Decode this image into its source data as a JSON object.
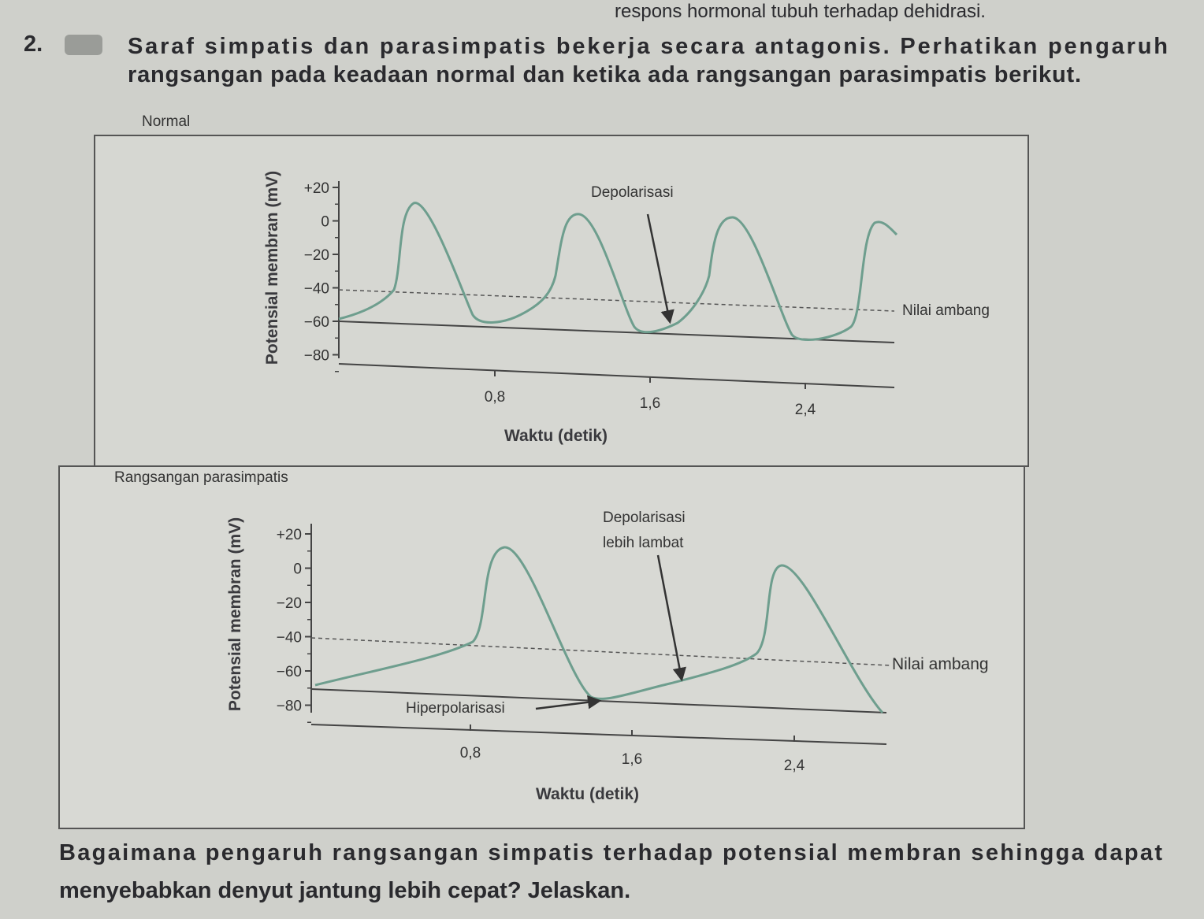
{
  "header": {
    "text": "respons hormonal tubuh terhadap dehidrasi."
  },
  "question": {
    "number": "2.",
    "lines": [
      "Saraf simpatis dan parasimpatis bekerja secara antagonis. Perhatikan pengaruh",
      "rangsangan pada keadaan normal dan ketika ada rangsangan parasimpatis berikut."
    ]
  },
  "figures": [
    {
      "label": "Normal",
      "y_axis_title": "Potensial membran (mV)",
      "y_ticks": [
        "+20",
        "0",
        "−20",
        "−40",
        "−60",
        "−80"
      ],
      "x_ticks": [
        "0,8",
        "1,6",
        "2,4"
      ],
      "x_axis_title": "Waktu (detik)",
      "annotations": [
        "Depolarisasi",
        "Nilai ambang"
      ]
    },
    {
      "label": "Rangsangan parasimpatis",
      "y_axis_title": "Potensial membran (mV)",
      "y_ticks": [
        "+20",
        "0",
        "−20",
        "−40",
        "−60",
        "−80"
      ],
      "x_ticks": [
        "0,8",
        "1,6",
        "2,4"
      ],
      "x_axis_title": "Waktu (detik)",
      "annotations": [
        "Depolarisasi",
        "lebih lambat",
        "Nilai ambang",
        "Hiperpolarisasi"
      ]
    }
  ],
  "prompt": {
    "lines": [
      "Bagaimana pengaruh rangsangan simpatis terhadap potensial membran sehingga dapat",
      "menyebabkan denyut jantung lebih cepat? Jelaskan."
    ]
  }
}
